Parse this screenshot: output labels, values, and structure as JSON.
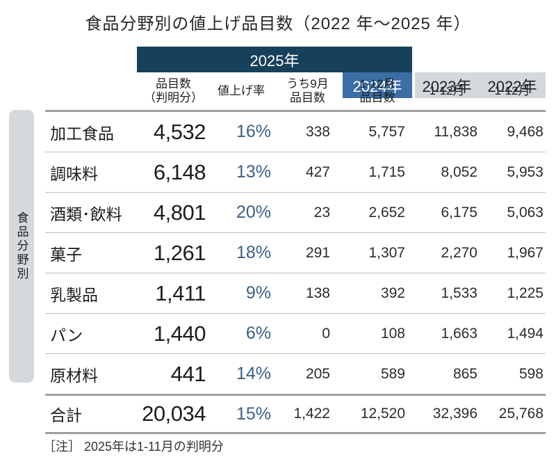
{
  "title": "食品分野別の値上げ品目数（2022 年～2025 年）",
  "sidebar_label": "食品分野別",
  "header": {
    "band_2025": "2025年",
    "band_2024": "2024年",
    "band_2023": "2023年",
    "band_2022": "2022年",
    "sub": {
      "items_line1": "品目数",
      "items_line2": "（判明分）",
      "rate": "値上げ率",
      "sep_line1": "うち9月",
      "sep_line2": "品目数",
      "y2024_line1": "1-12月",
      "y2024_line2": "品目数",
      "y2023": "1-12月",
      "y2022": "1-12月"
    }
  },
  "table": {
    "rows": [
      {
        "category": "加工食品",
        "items": "4,532",
        "rate": "16%",
        "sep": "338",
        "y2024": "5,757",
        "y2023": "11,838",
        "y2022": "9,468"
      },
      {
        "category": "調味料",
        "items": "6,148",
        "rate": "13%",
        "sep": "427",
        "y2024": "1,715",
        "y2023": "8,052",
        "y2022": "5,953"
      },
      {
        "category": "酒類･飲料",
        "items": "4,801",
        "rate": "20%",
        "sep": "23",
        "y2024": "2,652",
        "y2023": "6,175",
        "y2022": "5,063"
      },
      {
        "category": "菓子",
        "items": "1,261",
        "rate": "18%",
        "sep": "291",
        "y2024": "1,307",
        "y2023": "2,270",
        "y2022": "1,967"
      },
      {
        "category": "乳製品",
        "items": "1,411",
        "rate": "9%",
        "sep": "138",
        "y2024": "392",
        "y2023": "1,533",
        "y2022": "1,225"
      },
      {
        "category": "パン",
        "items": "1,440",
        "rate": "6%",
        "sep": "0",
        "y2024": "108",
        "y2023": "1,663",
        "y2022": "1,494"
      },
      {
        "category": "原材料",
        "items": "441",
        "rate": "14%",
        "sep": "205",
        "y2024": "589",
        "y2023": "865",
        "y2022": "598"
      }
    ],
    "total": {
      "category": "合計",
      "items": "20,034",
      "rate": "15%",
      "sep": "1,422",
      "y2024": "12,520",
      "y2023": "32,396",
      "y2022": "25,768"
    }
  },
  "note": "［注］ 2025年は1-11月の判明分",
  "colors": {
    "band_2025_bg": "#17405a",
    "band_2024_bg": "#3a6ea5",
    "band_prev_bg": "#d4d8db",
    "sidebar_bg": "#d5d9dc",
    "rate_text": "#3a608a",
    "thick_line": "#9aa0a6",
    "thin_line": "#babfc3"
  },
  "chart_data": {
    "type": "table",
    "title": "食品分野別の値上げ品目数（2022年～2025年）",
    "row_axis_label": "食品分野別",
    "column_groups": [
      "2025年",
      "2025年",
      "2025年",
      "2024年",
      "2023年",
      "2022年"
    ],
    "columns": [
      "品目数（判明分）",
      "値上げ率",
      "うち9月品目数",
      "1-12月品目数",
      "1-12月",
      "1-12月"
    ],
    "rows": [
      {
        "category": "加工食品",
        "values": [
          4532,
          "16%",
          338,
          5757,
          11838,
          9468
        ]
      },
      {
        "category": "調味料",
        "values": [
          6148,
          "13%",
          427,
          1715,
          8052,
          5953
        ]
      },
      {
        "category": "酒類･飲料",
        "values": [
          4801,
          "20%",
          23,
          2652,
          6175,
          5063
        ]
      },
      {
        "category": "菓子",
        "values": [
          1261,
          "18%",
          291,
          1307,
          2270,
          1967
        ]
      },
      {
        "category": "乳製品",
        "values": [
          1411,
          "9%",
          138,
          392,
          1533,
          1225
        ]
      },
      {
        "category": "パン",
        "values": [
          1440,
          "6%",
          0,
          108,
          1663,
          1494
        ]
      },
      {
        "category": "原材料",
        "values": [
          441,
          "14%",
          205,
          589,
          865,
          598
        ]
      },
      {
        "category": "合計",
        "values": [
          20034,
          "15%",
          1422,
          12520,
          32396,
          25768
        ]
      }
    ],
    "note": "2025年は1-11月の判明分"
  }
}
